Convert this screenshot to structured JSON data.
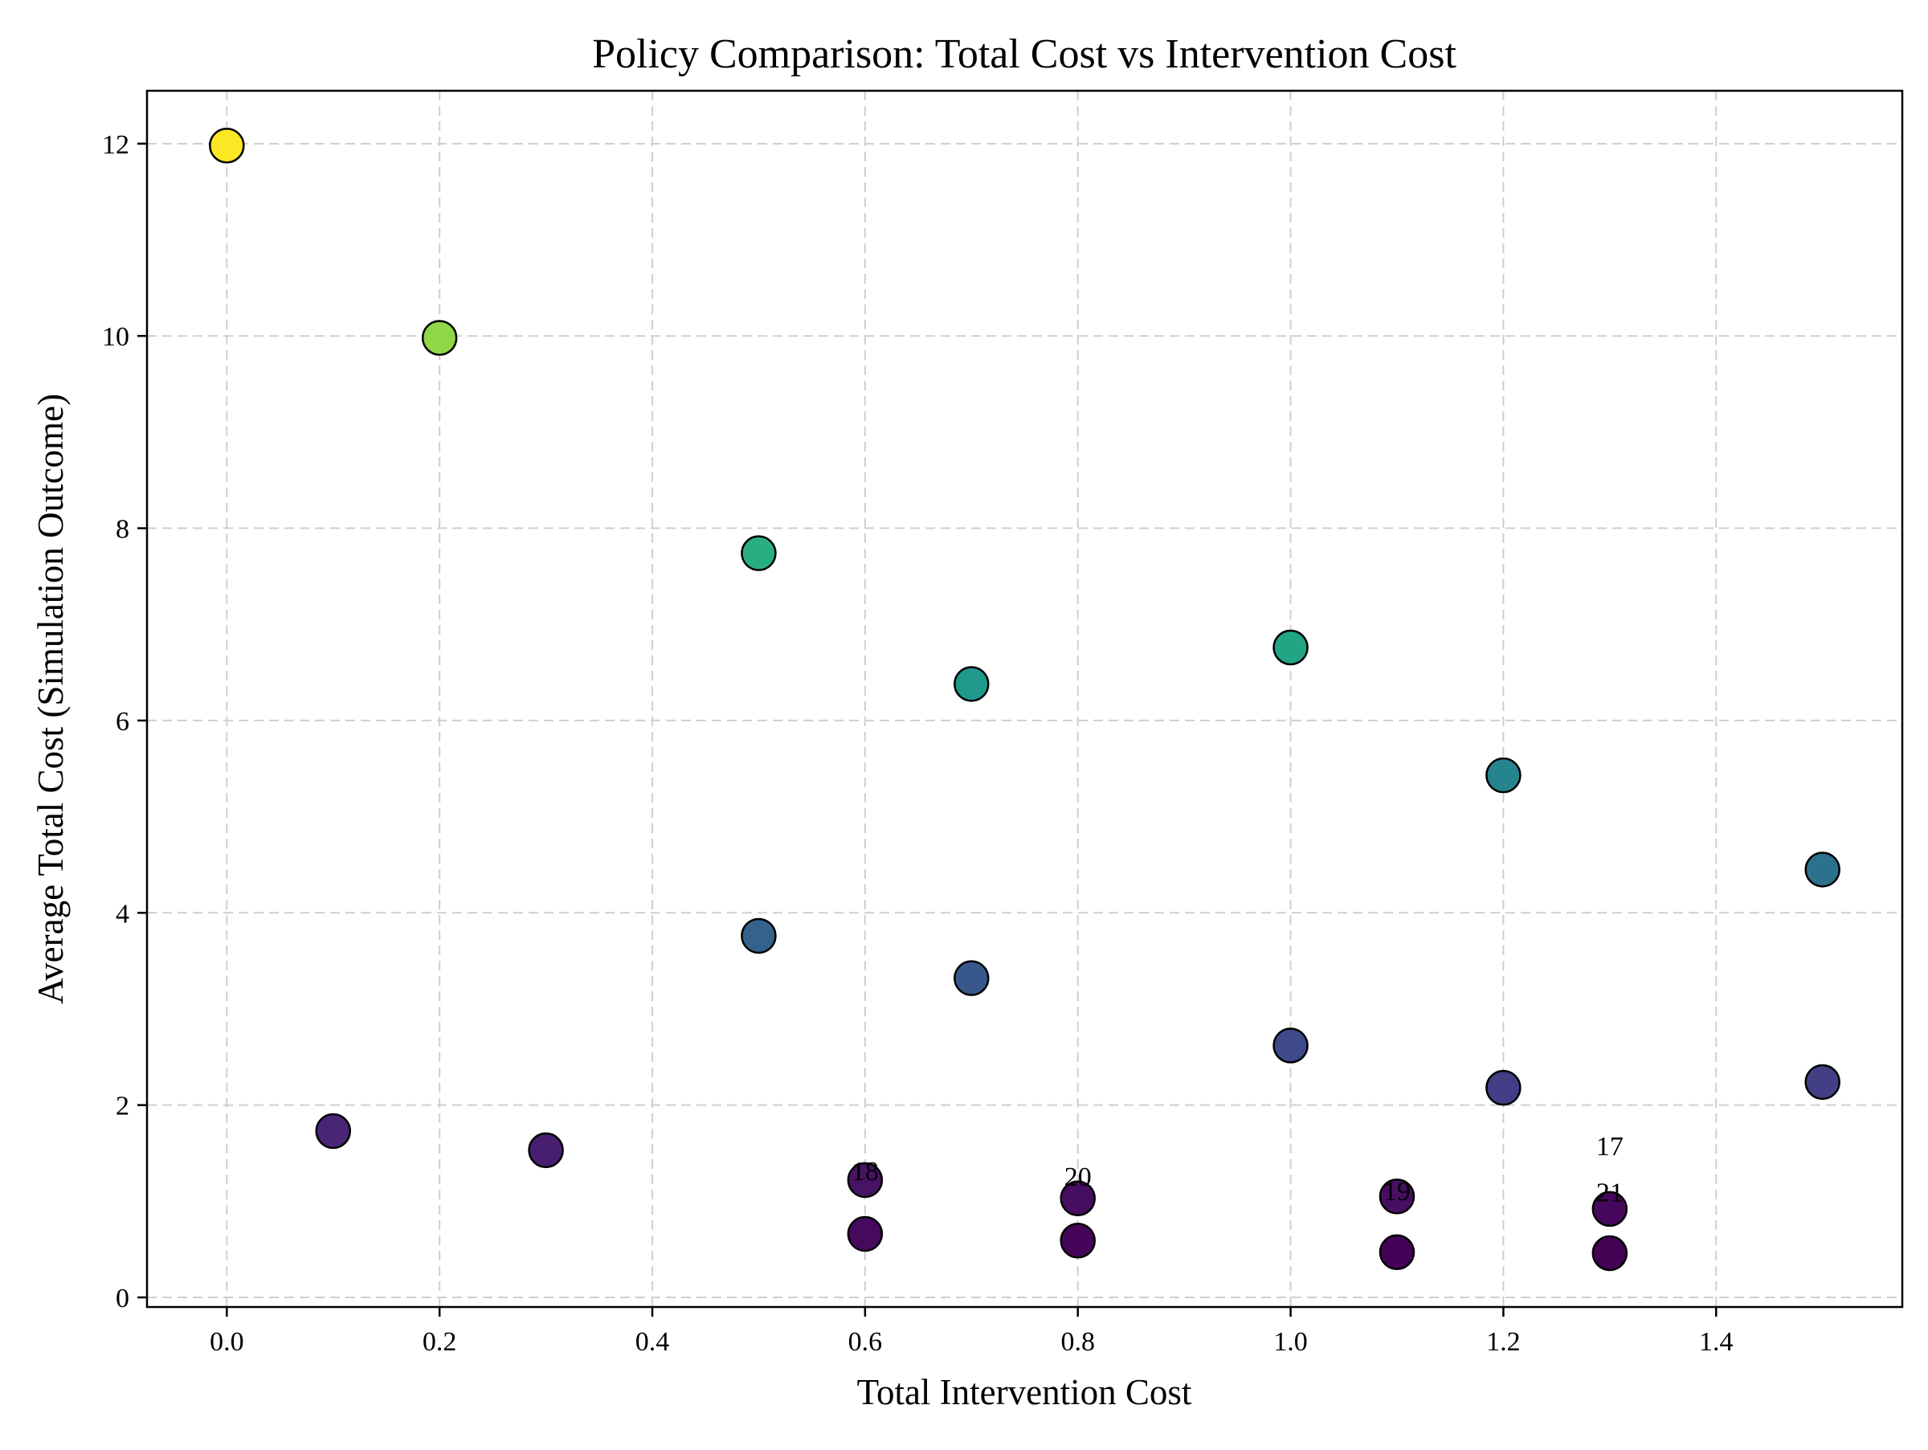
{
  "chart_data": {
    "type": "scatter",
    "title": "Policy Comparison: Total Cost vs Intervention Cost",
    "xlabel": "Total Intervention Cost",
    "ylabel": "Average Total Cost (Simulation Outcome)",
    "xlim": [
      -0.075,
      1.575
    ],
    "ylim": [
      -0.1,
      12.55
    ],
    "xticks": [
      0.0,
      0.2,
      0.4,
      0.6,
      0.8,
      1.0,
      1.2,
      1.4
    ],
    "xtick_labels": [
      "0.0",
      "0.2",
      "0.4",
      "0.6",
      "0.8",
      "1.0",
      "1.2",
      "1.4"
    ],
    "yticks": [
      0,
      2,
      4,
      6,
      8,
      10,
      12
    ],
    "ytick_labels": [
      "0",
      "2",
      "4",
      "6",
      "8",
      "10",
      "12"
    ],
    "grid": true,
    "colormap": "viridis",
    "points": [
      {
        "x": 0.0,
        "y": 11.98,
        "color": "#fde725"
      },
      {
        "x": 0.2,
        "y": 9.98,
        "color": "#8fd744"
      },
      {
        "x": 0.5,
        "y": 7.74,
        "color": "#29af7f"
      },
      {
        "x": 0.7,
        "y": 6.38,
        "color": "#1f9a8a"
      },
      {
        "x": 1.0,
        "y": 6.76,
        "color": "#21a585"
      },
      {
        "x": 1.2,
        "y": 5.43,
        "color": "#25848e"
      },
      {
        "x": 1.5,
        "y": 4.45,
        "color": "#2c728e"
      },
      {
        "x": 0.5,
        "y": 3.76,
        "color": "#33638d"
      },
      {
        "x": 0.7,
        "y": 3.32,
        "color": "#38588c"
      },
      {
        "x": 1.0,
        "y": 2.62,
        "color": "#3e4a89"
      },
      {
        "x": 1.2,
        "y": 2.18,
        "color": "#433e85"
      },
      {
        "x": 1.5,
        "y": 2.24,
        "color": "#423f85"
      },
      {
        "x": 0.1,
        "y": 1.73,
        "color": "#482575"
      },
      {
        "x": 0.3,
        "y": 1.53,
        "color": "#481f70"
      },
      {
        "x": 0.6,
        "y": 1.22,
        "color": "#471365"
      },
      {
        "x": 0.8,
        "y": 1.03,
        "color": "#470d60"
      },
      {
        "x": 1.1,
        "y": 1.05,
        "color": "#470e61"
      },
      {
        "x": 1.3,
        "y": 0.92,
        "color": "#46085c"
      },
      {
        "x": 0.6,
        "y": 0.66,
        "color": "#460a5d"
      },
      {
        "x": 0.8,
        "y": 0.59,
        "color": "#450559"
      },
      {
        "x": 1.1,
        "y": 0.47,
        "color": "#440256"
      },
      {
        "x": 1.3,
        "y": 0.46,
        "color": "#440154"
      }
    ],
    "annotations": [
      {
        "text": "17",
        "x": 1.3,
        "y": 1.58
      },
      {
        "text": "18",
        "x": 0.6,
        "y": 1.32
      },
      {
        "text": "20",
        "x": 0.8,
        "y": 1.26
      },
      {
        "text": "19",
        "x": 1.1,
        "y": 1.11
      },
      {
        "text": "21",
        "x": 1.3,
        "y": 1.1
      }
    ]
  }
}
